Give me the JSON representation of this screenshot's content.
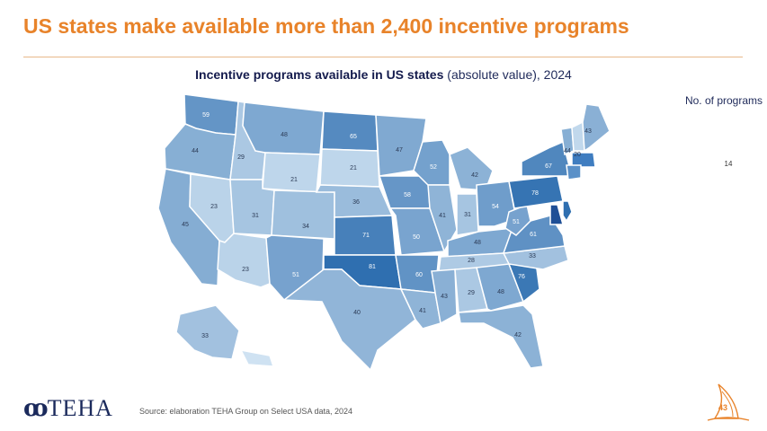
{
  "title": "US states make available more than 2,400 incentive programs",
  "subtitle": {
    "bold": "Incentive programs available in US states",
    "normal": " (absolute value), 2024"
  },
  "legend": {
    "title": "No. of programs",
    "value": "14"
  },
  "source": "Source: elaboration TEHA Group on Select USA data, 2024",
  "logo_text": "TEHA",
  "page_number": "43",
  "colors": {
    "title": "#e8832a",
    "accent_rule": "#e9b98a",
    "navy": "#1b2a5c",
    "scale_low": "#cfe2f2",
    "scale_high": "#2f6fb0"
  },
  "states": [
    {
      "code": "WA",
      "value": "59"
    },
    {
      "code": "OR",
      "value": "44"
    },
    {
      "code": "CA",
      "value": "45"
    },
    {
      "code": "ID",
      "value": "29"
    },
    {
      "code": "NV",
      "value": "23"
    },
    {
      "code": "AZ",
      "value": "23"
    },
    {
      "code": "MT",
      "value": "48"
    },
    {
      "code": "WY",
      "value": "21"
    },
    {
      "code": "UT",
      "value": "31"
    },
    {
      "code": "CO",
      "value": "34"
    },
    {
      "code": "NM",
      "value": "51"
    },
    {
      "code": "ND",
      "value": "65"
    },
    {
      "code": "SD",
      "value": "21"
    },
    {
      "code": "NE",
      "value": "36"
    },
    {
      "code": "KS",
      "value": "71"
    },
    {
      "code": "OK",
      "value": "81"
    },
    {
      "code": "TX",
      "value": "40"
    },
    {
      "code": "MN",
      "value": "47"
    },
    {
      "code": "IA",
      "value": "58"
    },
    {
      "code": "MO",
      "value": "50"
    },
    {
      "code": "AR",
      "value": "60"
    },
    {
      "code": "LA",
      "value": "41"
    },
    {
      "code": "WI",
      "value": "52"
    },
    {
      "code": "IL",
      "value": "41"
    },
    {
      "code": "MI",
      "value": "42"
    },
    {
      "code": "IN",
      "value": "31"
    },
    {
      "code": "OH",
      "value": "54"
    },
    {
      "code": "KY",
      "value": "48"
    },
    {
      "code": "TN",
      "value": "28"
    },
    {
      "code": "MS",
      "value": "43"
    },
    {
      "code": "AL",
      "value": "29"
    },
    {
      "code": "GA",
      "value": "48"
    },
    {
      "code": "FL",
      "value": "42"
    },
    {
      "code": "SC",
      "value": "76"
    },
    {
      "code": "NC",
      "value": "33"
    },
    {
      "code": "VA",
      "value": "61"
    },
    {
      "code": "WV",
      "value": "51"
    },
    {
      "code": "PA",
      "value": "78"
    },
    {
      "code": "NY",
      "value": "67"
    },
    {
      "code": "VT",
      "value": "44"
    },
    {
      "code": "NH",
      "value": "20"
    },
    {
      "code": "ME",
      "value": "43"
    },
    {
      "code": "AK",
      "value": "33"
    }
  ]
}
